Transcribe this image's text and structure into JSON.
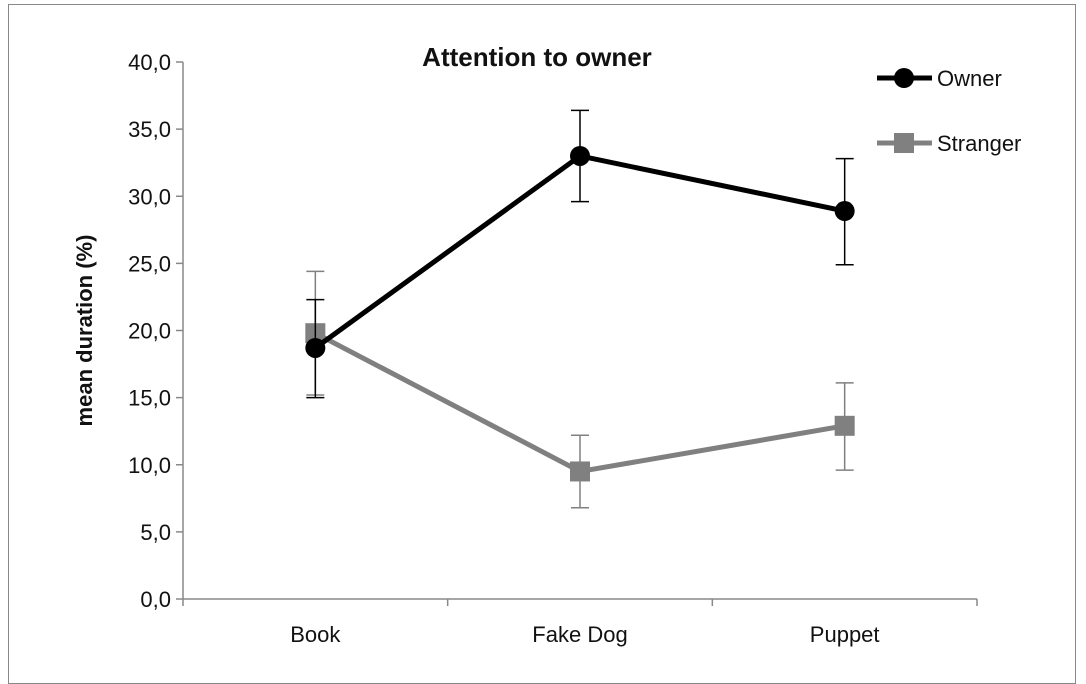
{
  "chart_data": {
    "type": "line",
    "title": "Attention to  owner",
    "xlabel": "",
    "ylabel": "mean duration (%)",
    "categories": [
      "Book",
      "Fake Dog",
      "Puppet"
    ],
    "ylim": [
      0,
      40
    ],
    "yticks": [
      "0,0",
      "5,0",
      "10,0",
      "15,0",
      "20,0",
      "25,0",
      "30,0",
      "35,0",
      "40,0"
    ],
    "series": [
      {
        "name": "Owner",
        "values": [
          18.7,
          33.0,
          28.9
        ],
        "err_low": [
          15.0,
          29.6,
          24.9
        ],
        "err_high": [
          22.3,
          36.4,
          32.8
        ],
        "color": "#000000",
        "marker": "circle"
      },
      {
        "name": "Stranger",
        "values": [
          19.8,
          9.5,
          12.9
        ],
        "err_low": [
          15.2,
          6.8,
          9.6
        ],
        "err_high": [
          24.4,
          12.2,
          16.1
        ],
        "color": "#808080",
        "marker": "square"
      }
    ],
    "legend": "top-right",
    "grid": false
  }
}
